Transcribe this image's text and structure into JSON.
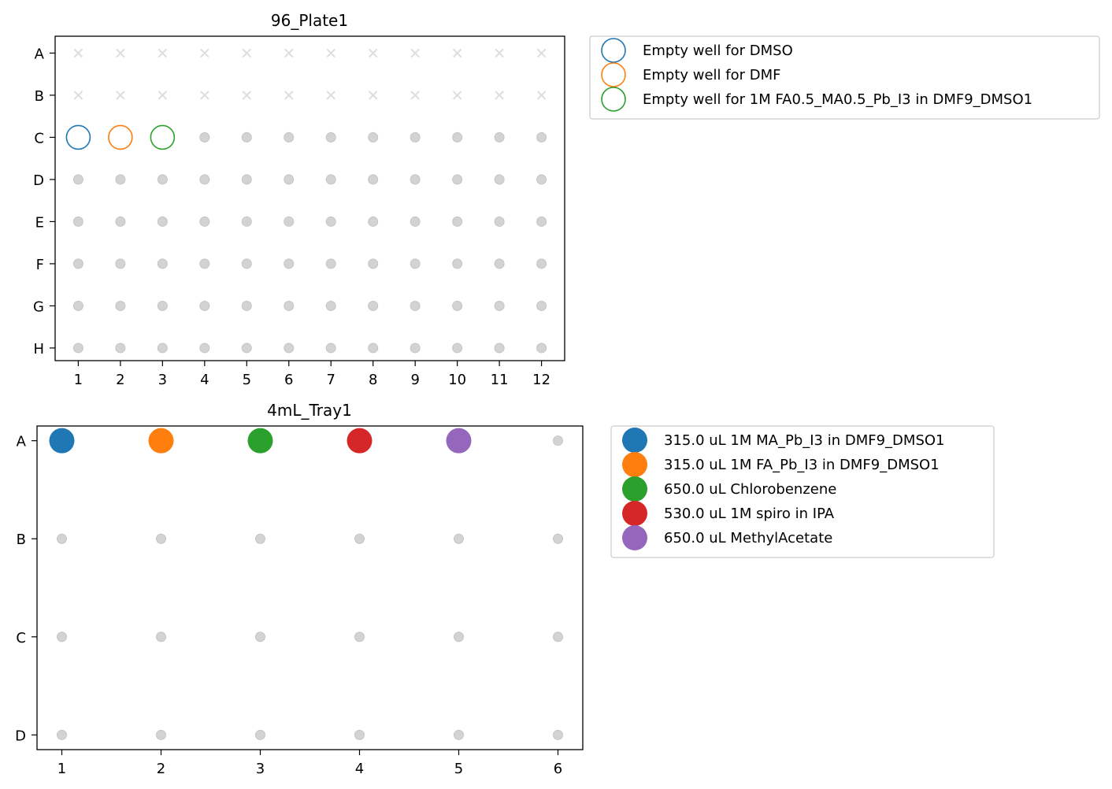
{
  "chart_data": [
    {
      "type": "scatter",
      "title": "96_Plate1",
      "xlabel": "",
      "ylabel": "",
      "x_ticks": [
        "1",
        "2",
        "3",
        "4",
        "5",
        "6",
        "7",
        "8",
        "9",
        "10",
        "11",
        "12"
      ],
      "y_ticks": [
        "A",
        "B",
        "C",
        "D",
        "E",
        "F",
        "G",
        "H"
      ],
      "xlim": [
        0.45,
        12.55
      ],
      "ylim": [
        0.6,
        8.3
      ],
      "grid": false,
      "legend_position": "outside-top-right",
      "unavailable_wells": {
        "marker": "x",
        "color": "#dddddd",
        "rows": [
          "A",
          "B"
        ],
        "columns": [
          1,
          2,
          3,
          4,
          5,
          6,
          7,
          8,
          9,
          10,
          11,
          12
        ]
      },
      "available_wells": {
        "marker": "dot",
        "color": "#d3d3d3",
        "rule": "rows C-H all columns except wells used by series"
      },
      "series": [
        {
          "name": "Empty well for DMSO",
          "color": "#1f77b4",
          "marker": "open-circle",
          "points": [
            {
              "row": "C",
              "col": 1
            }
          ]
        },
        {
          "name": "Empty well for DMF",
          "color": "#ff7f0e",
          "marker": "open-circle",
          "points": [
            {
              "row": "C",
              "col": 2
            }
          ]
        },
        {
          "name": "Empty well for 1M FA0.5_MA0.5_Pb_I3 in DMF9_DMSO1",
          "color": "#2ca02c",
          "marker": "open-circle",
          "points": [
            {
              "row": "C",
              "col": 3
            }
          ]
        }
      ]
    },
    {
      "type": "scatter",
      "title": "4mL_Tray1",
      "xlabel": "",
      "ylabel": "",
      "x_ticks": [
        "1",
        "2",
        "3",
        "4",
        "5",
        "6"
      ],
      "y_ticks": [
        "A",
        "B",
        "C",
        "D"
      ],
      "xlim": [
        0.75,
        6.25
      ],
      "ylim": [
        0.85,
        4.15
      ],
      "grid": false,
      "legend_position": "outside-top-right",
      "available_wells": {
        "marker": "dot",
        "color": "#d3d3d3",
        "rule": "all wells except wells used by series"
      },
      "series": [
        {
          "name": "315.0 uL 1M MA_Pb_I3 in DMF9_DMSO1",
          "color": "#1f77b4",
          "marker": "filled-circle",
          "points": [
            {
              "row": "A",
              "col": 1
            }
          ]
        },
        {
          "name": "315.0 uL 1M FA_Pb_I3 in DMF9_DMSO1",
          "color": "#ff7f0e",
          "marker": "filled-circle",
          "points": [
            {
              "row": "A",
              "col": 2
            }
          ]
        },
        {
          "name": "650.0 uL Chlorobenzene",
          "color": "#2ca02c",
          "marker": "filled-circle",
          "points": [
            {
              "row": "A",
              "col": 3
            }
          ]
        },
        {
          "name": "530.0 uL 1M spiro in IPA",
          "color": "#d62728",
          "marker": "filled-circle",
          "points": [
            {
              "row": "A",
              "col": 4
            }
          ]
        },
        {
          "name": "650.0 uL MethylAcetate",
          "color": "#9467bd",
          "marker": "filled-circle",
          "points": [
            {
              "row": "A",
              "col": 5
            }
          ]
        }
      ]
    }
  ]
}
